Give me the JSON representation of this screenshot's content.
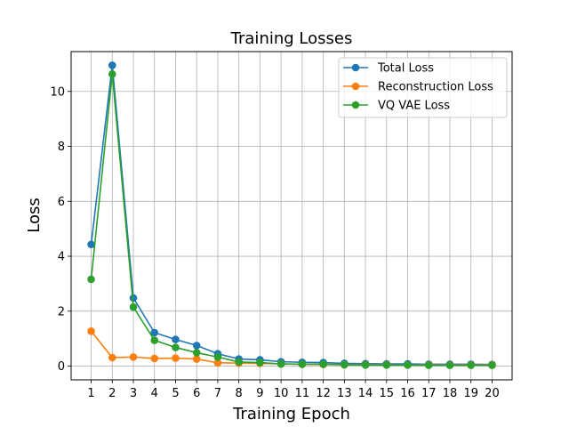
{
  "chart_data": {
    "type": "line",
    "title": "Training Losses",
    "xlabel": "Training Epoch",
    "ylabel": "Loss",
    "x": [
      1,
      2,
      3,
      4,
      5,
      6,
      7,
      8,
      9,
      10,
      11,
      12,
      13,
      14,
      15,
      16,
      17,
      18,
      19,
      20
    ],
    "xlim": [
      0.05,
      20.95
    ],
    "ylim": [
      -0.5,
      11.45
    ],
    "yticks": [
      0,
      2,
      4,
      6,
      8,
      10
    ],
    "grid": true,
    "legend_position": "top-right",
    "series": [
      {
        "name": "Total Loss",
        "color": "#1f77b4",
        "values": [
          4.43,
          10.95,
          2.48,
          1.22,
          0.97,
          0.75,
          0.45,
          0.26,
          0.23,
          0.16,
          0.14,
          0.13,
          0.1,
          0.09,
          0.08,
          0.08,
          0.07,
          0.07,
          0.07,
          0.06
        ]
      },
      {
        "name": "Reconstruction Loss",
        "color": "#ff7f0e",
        "values": [
          1.27,
          0.31,
          0.33,
          0.28,
          0.29,
          0.26,
          0.12,
          0.11,
          0.1,
          0.08,
          0.07,
          0.06,
          0.05,
          0.05,
          0.05,
          0.04,
          0.04,
          0.04,
          0.04,
          0.04
        ]
      },
      {
        "name": "VQ VAE Loss",
        "color": "#2ca02c",
        "values": [
          3.16,
          10.63,
          2.15,
          0.94,
          0.68,
          0.49,
          0.33,
          0.15,
          0.13,
          0.08,
          0.07,
          0.07,
          0.05,
          0.04,
          0.04,
          0.04,
          0.03,
          0.03,
          0.03,
          0.03
        ]
      }
    ]
  }
}
